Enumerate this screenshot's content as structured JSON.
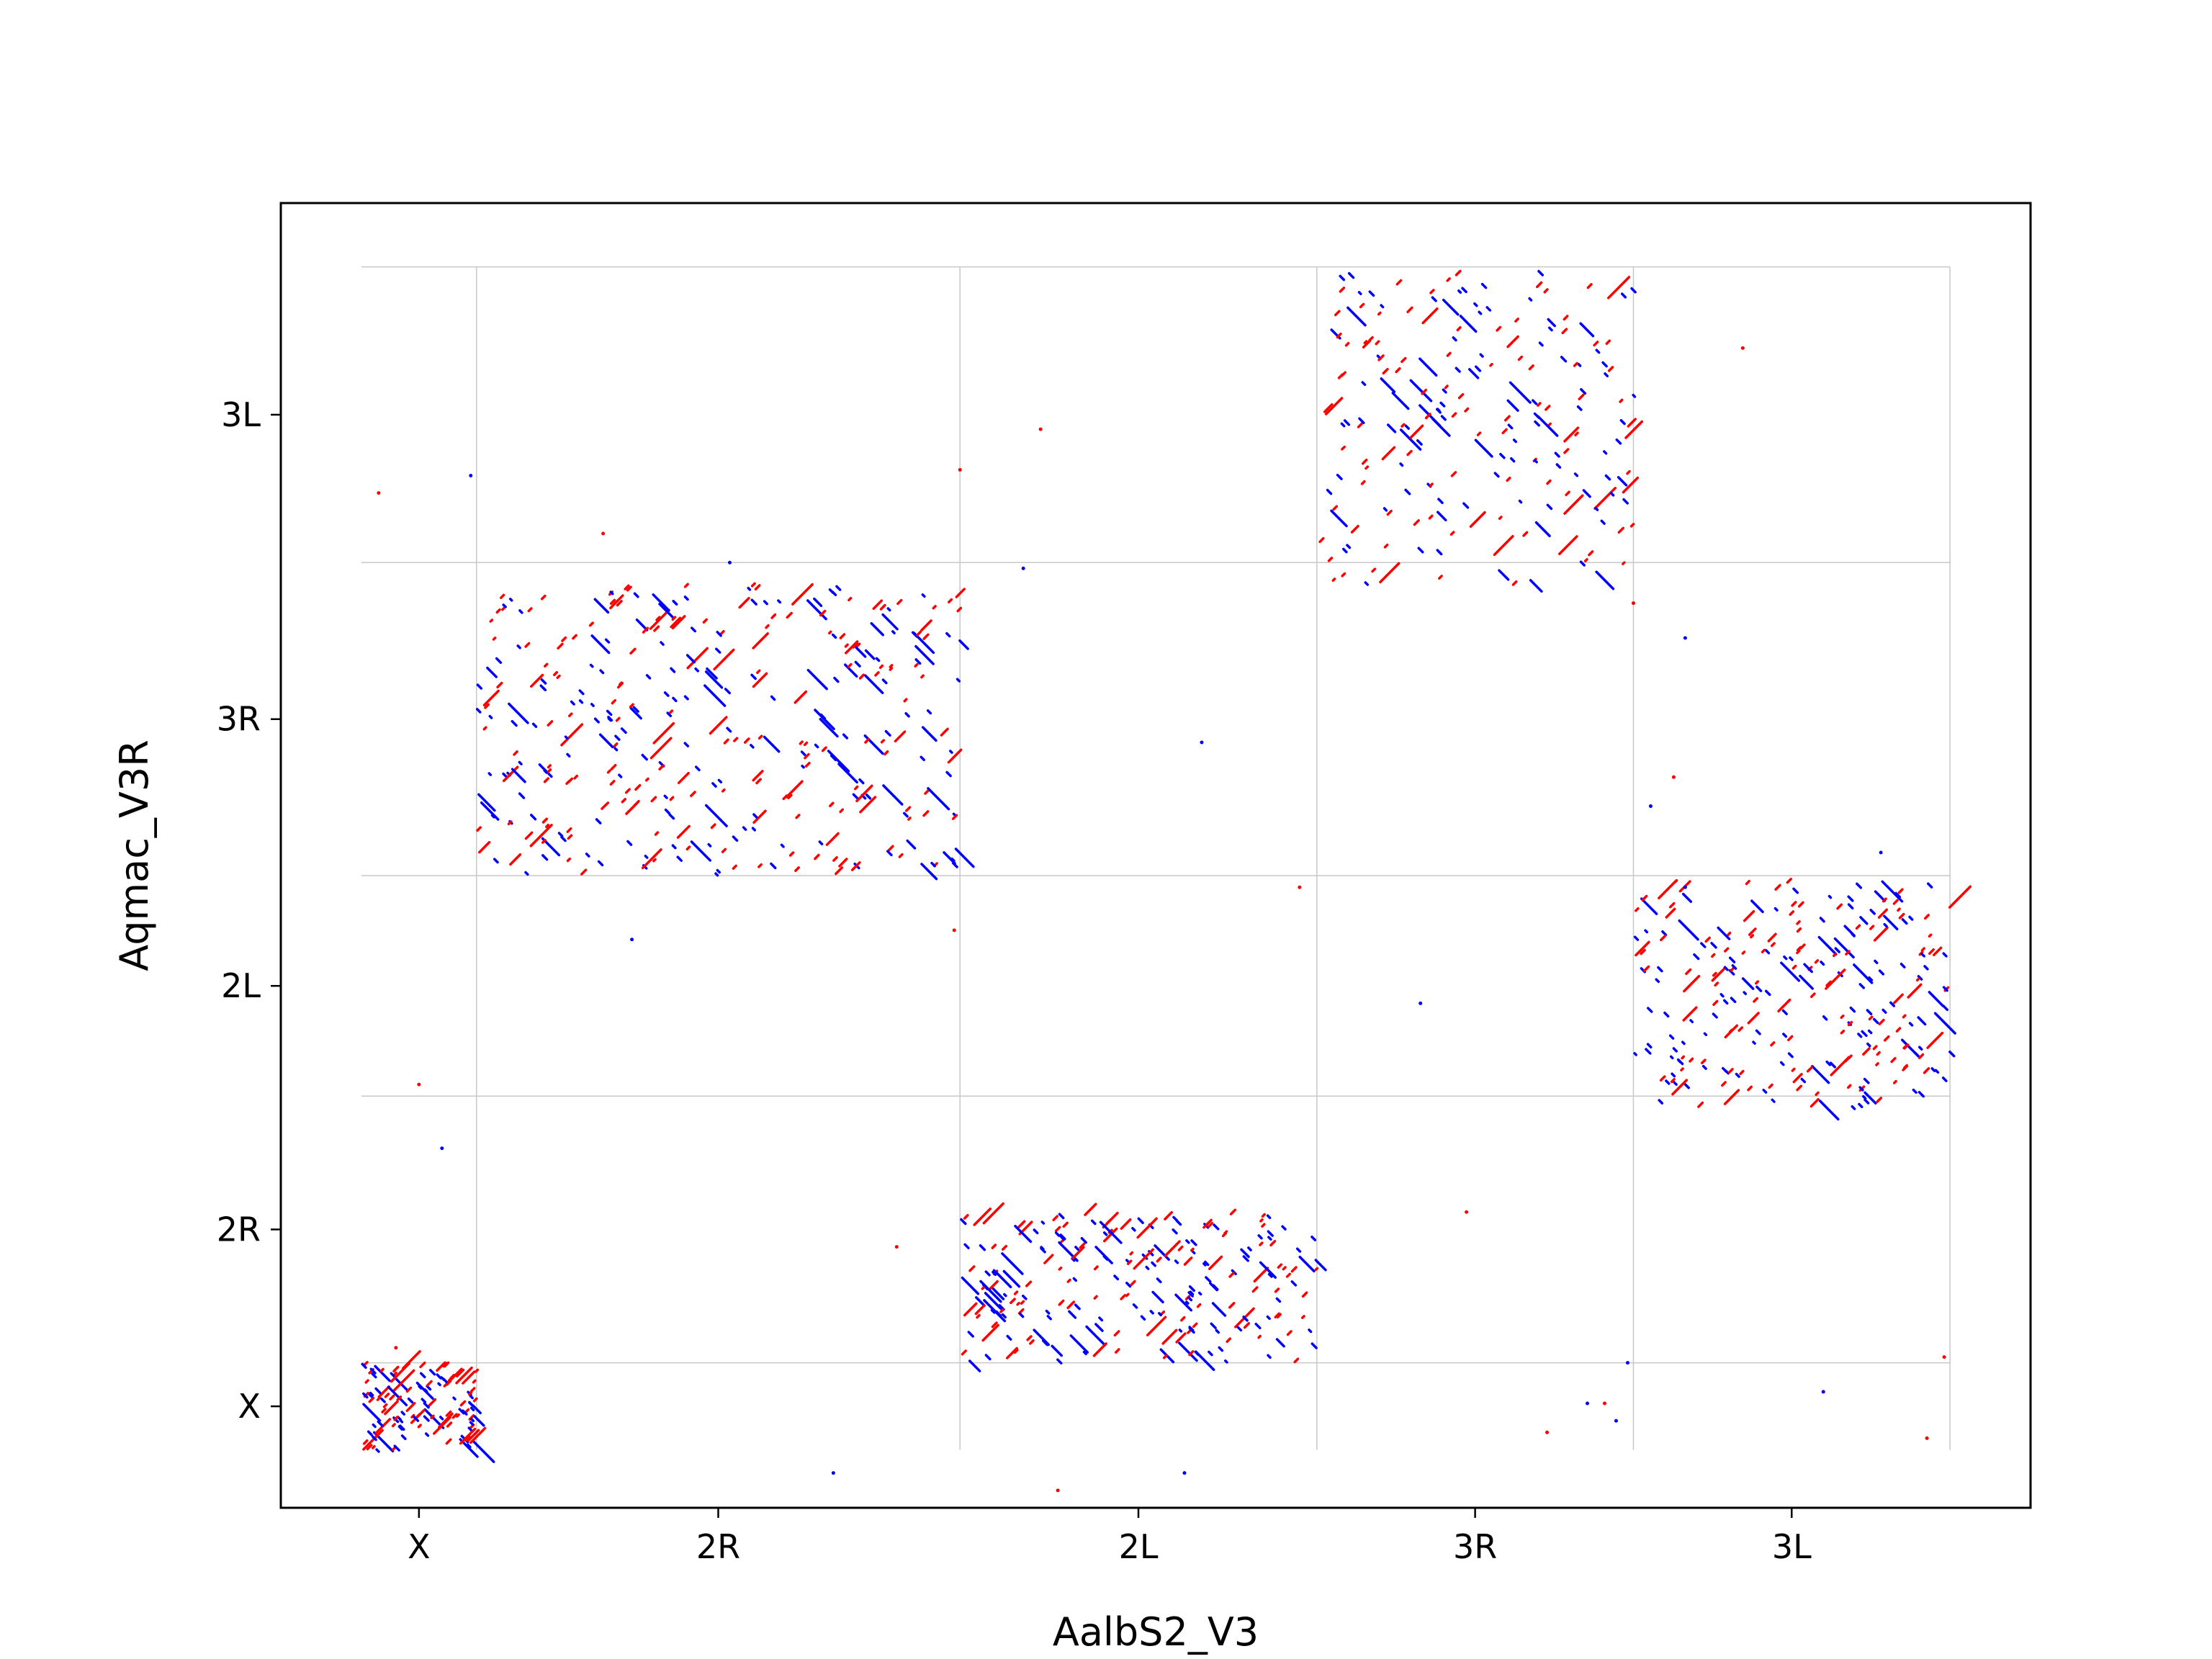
{
  "chart_data": {
    "type": "scatter",
    "title": "",
    "xlabel": "AalbS2_V3",
    "ylabel": "Aqmac_V3R",
    "x_chromosomes": [
      {
        "name": "X",
        "start": 0,
        "end": 10
      },
      {
        "name": "2R",
        "start": 10,
        "end": 52
      },
      {
        "name": "2L",
        "start": 52,
        "end": 83
      },
      {
        "name": "3R",
        "start": 83,
        "end": 110.5
      },
      {
        "name": "3L",
        "start": 110.5,
        "end": 138
      }
    ],
    "y_chromosomes": [
      {
        "name": "X",
        "start": 0,
        "end": 7.5
      },
      {
        "name": "2R",
        "start": 7.5,
        "end": 30.5
      },
      {
        "name": "2L",
        "start": 30.5,
        "end": 49.5
      },
      {
        "name": "3R",
        "start": 49.5,
        "end": 76.5
      },
      {
        "name": "3L",
        "start": 76.5,
        "end": 102
      }
    ],
    "xlim": [
      -7,
      145
    ],
    "ylim": [
      -5,
      107.5
    ],
    "grid": true,
    "legend": "none",
    "series": [
      {
        "strand": "forward",
        "color": "#ff0000"
      },
      {
        "strand": "reverse",
        "color": "#0000ff"
      }
    ],
    "blocks": [
      {
        "x": [
          0,
          10
        ],
        "y": [
          0,
          7.5
        ],
        "n": 130
      },
      {
        "x": [
          10,
          52
        ],
        "y": [
          49.5,
          74.5
        ],
        "n": 360
      },
      {
        "x": [
          52,
          83
        ],
        "y": [
          7.5,
          20.5
        ],
        "n": 240
      },
      {
        "x": [
          83,
          110.5
        ],
        "y": [
          74.5,
          102
        ],
        "n": 210
      },
      {
        "x": [
          110.5,
          138
        ],
        "y": [
          29.5,
          49
        ],
        "n": 260
      }
    ],
    "stray_points": [
      [
        1.5,
        82.5
      ],
      [
        9.5,
        84
      ],
      [
        21,
        79
      ],
      [
        32,
        76.5
      ],
      [
        59,
        88
      ],
      [
        57.5,
        76
      ],
      [
        52,
        84.5
      ],
      [
        73,
        61
      ],
      [
        3,
        8.8
      ],
      [
        7,
        26
      ],
      [
        5,
        31.5
      ],
      [
        23.5,
        44
      ],
      [
        46.5,
        17.5
      ],
      [
        41,
        -2
      ],
      [
        60.5,
        -3.5
      ],
      [
        71.5,
        -2
      ],
      [
        81.5,
        48.5
      ],
      [
        92,
        38.5
      ],
      [
        96,
        20.5
      ],
      [
        112,
        55.5
      ],
      [
        110.5,
        73
      ],
      [
        115,
        48.5
      ],
      [
        120,
        95
      ],
      [
        127,
        5
      ],
      [
        114,
        58
      ],
      [
        106.5,
        4
      ],
      [
        108,
        4
      ],
      [
        110,
        7.5
      ],
      [
        137.5,
        8
      ],
      [
        132,
        51.5
      ],
      [
        136,
        1
      ],
      [
        115,
        70
      ],
      [
        51.5,
        44.8
      ],
      [
        109,
        2.5
      ],
      [
        103,
        1.5
      ]
    ]
  }
}
